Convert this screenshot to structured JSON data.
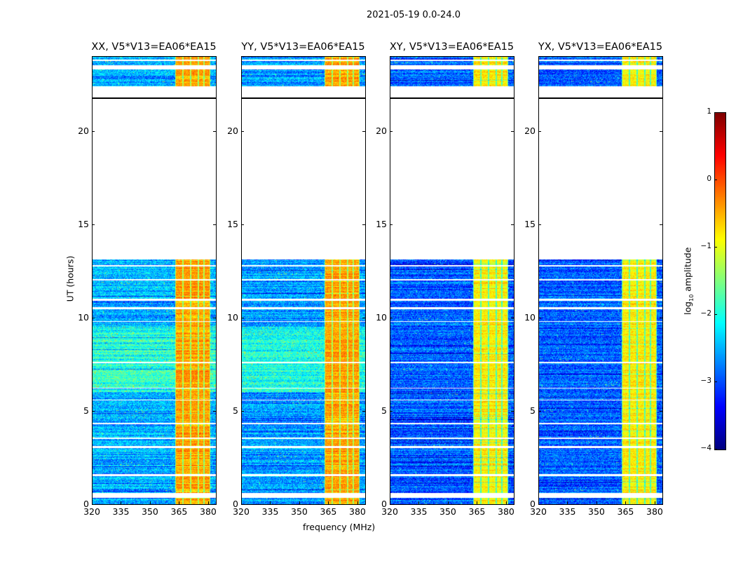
{
  "figure": {
    "suptitle": "2021-05-19 0.0-24.0"
  },
  "chart_data": {
    "type": "heatmap",
    "title": "2021-05-19 0.0-24.0",
    "xlabel": "frequency (MHz)",
    "ylabel": "UT (hours)",
    "xlim": [
      320,
      384
    ],
    "ylim": [
      0,
      24
    ],
    "xticks": [
      "320",
      "335",
      "350",
      "365",
      "380"
    ],
    "xtick_values": [
      320,
      335,
      350,
      365,
      380
    ],
    "yticks": [
      "0",
      "5",
      "10",
      "15",
      "20"
    ],
    "ytick_values": [
      0,
      5,
      10,
      15,
      20
    ],
    "panels": [
      {
        "title": "XX, V5*V13=EA06*EA15",
        "band_level": -0.4,
        "bg_level": -2.5
      },
      {
        "title": "YY, V5*V13=EA06*EA15",
        "band_level": -0.4,
        "bg_level": -2.6
      },
      {
        "title": "XY, V5*V13=EA06*EA15",
        "band_level": -0.8,
        "bg_level": -2.9
      },
      {
        "title": "YX, V5*V13=EA06*EA15",
        "band_level": -0.8,
        "bg_level": -2.9
      }
    ],
    "data_segments_hours": [
      [
        0,
        13.1
      ],
      [
        22.4,
        24
      ]
    ],
    "flag_line_hours": [
      21.8
    ],
    "gap_hours": [
      [
        0.35,
        0.6
      ],
      [
        1.5,
        1.6
      ],
      [
        3.0,
        3.1
      ],
      [
        3.5,
        3.55
      ],
      [
        4.3,
        4.36
      ],
      [
        5.55,
        5.6
      ],
      [
        6.2,
        6.25
      ],
      [
        7.55,
        7.62
      ],
      [
        9.75,
        9.8
      ],
      [
        10.45,
        10.55
      ],
      [
        10.9,
        11.0
      ],
      [
        12.0,
        12.05
      ],
      [
        12.75,
        12.8
      ],
      [
        23.3,
        23.5
      ],
      [
        23.75,
        23.8
      ]
    ],
    "rfi_band_mhz": [
      363,
      381
    ],
    "rfi_subband_edges_mhz": [
      363,
      367,
      371,
      375,
      378,
      381
    ],
    "colorbar": {
      "label": "log10 amplitude",
      "label_main": "log",
      "label_sub": "10",
      "label_rest": " amplitude",
      "range": [
        -4,
        1
      ],
      "ticks": [
        "1",
        "0",
        "−1",
        "−2",
        "−3",
        "−4"
      ],
      "tick_values": [
        1,
        0,
        -1,
        -2,
        -3,
        -4
      ],
      "colormap": "jet"
    }
  }
}
